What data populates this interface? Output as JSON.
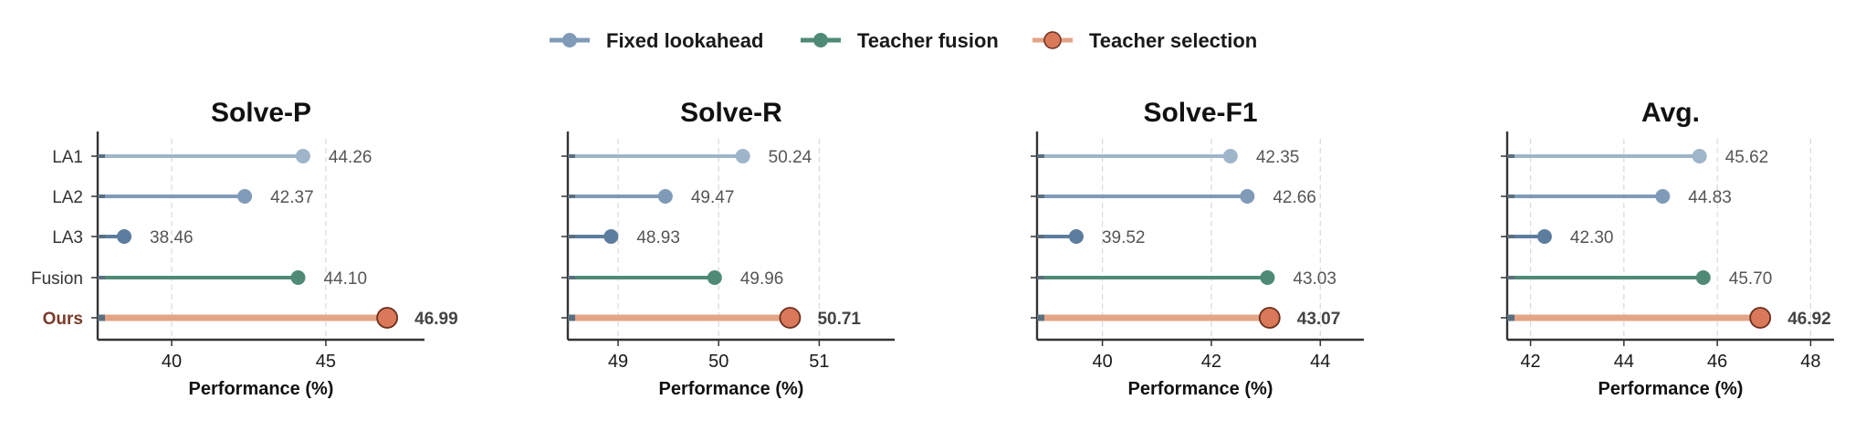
{
  "legend": [
    {
      "label": "Fixed lookahead",
      "color": "#7f9bb8"
    },
    {
      "label": "Teacher fusion",
      "color": "#4f8a76"
    },
    {
      "label": "Teacher selection",
      "color": "#d9795a"
    }
  ],
  "colors": {
    "la1": "#9eb5ca",
    "la2": "#7f9bb8",
    "la3": "#5d7d9e",
    "fusion": "#4f8a76",
    "ours": "#d9795a",
    "ours_stem": "#e4a486",
    "ours_label": "#7a3b2a"
  },
  "chart_data": [
    {
      "type": "lollipop",
      "title": "Solve-P",
      "xlabel": "Performance (%)",
      "categories": [
        "LA1",
        "LA2",
        "LA3",
        "Fusion",
        "Ours"
      ],
      "values": [
        44.26,
        42.37,
        38.46,
        44.1,
        46.99
      ],
      "value_labels": [
        "44.26",
        "42.37",
        "38.46",
        "44.10",
        "46.99"
      ],
      "xlim": [
        37.6,
        48.2
      ],
      "xticks": [
        40,
        45
      ],
      "xtick_labels": [
        "40",
        "45"
      ],
      "grid": "x-dashed"
    },
    {
      "type": "lollipop",
      "title": "Solve-R",
      "xlabel": "Performance (%)",
      "categories": [
        "LA1",
        "LA2",
        "LA3",
        "Fusion",
        "Ours"
      ],
      "values": [
        50.24,
        49.47,
        48.93,
        49.96,
        50.71
      ],
      "value_labels": [
        "50.24",
        "49.47",
        "48.93",
        "49.96",
        "50.71"
      ],
      "xlim": [
        48.5,
        51.75
      ],
      "xticks": [
        49,
        50,
        51
      ],
      "xtick_labels": [
        "49",
        "50",
        "51"
      ],
      "grid": "x-dashed"
    },
    {
      "type": "lollipop",
      "title": "Solve-F1",
      "xlabel": "Performance (%)",
      "categories": [
        "LA1",
        "LA2",
        "LA3",
        "Fusion",
        "Ours"
      ],
      "values": [
        42.35,
        42.66,
        39.52,
        43.03,
        43.07
      ],
      "value_labels": [
        "42.35",
        "42.66",
        "39.52",
        "43.03",
        "43.07"
      ],
      "xlim": [
        38.8,
        44.8
      ],
      "xticks": [
        40,
        42,
        44
      ],
      "xtick_labels": [
        "40",
        "42",
        "44"
      ],
      "grid": "x-dashed"
    },
    {
      "type": "lollipop",
      "title": "Avg.",
      "xlabel": "Performance (%)",
      "categories": [
        "LA1",
        "LA2",
        "LA3",
        "Fusion",
        "Ours"
      ],
      "values": [
        45.62,
        44.83,
        42.3,
        45.7,
        46.92
      ],
      "value_labels": [
        "45.62",
        "44.83",
        "42.30",
        "45.70",
        "46.92"
      ],
      "xlim": [
        41.5,
        48.5
      ],
      "xticks": [
        42,
        44,
        46,
        48
      ],
      "xtick_labels": [
        "42",
        "44",
        "46",
        "48"
      ],
      "grid": "x-dashed"
    }
  ]
}
